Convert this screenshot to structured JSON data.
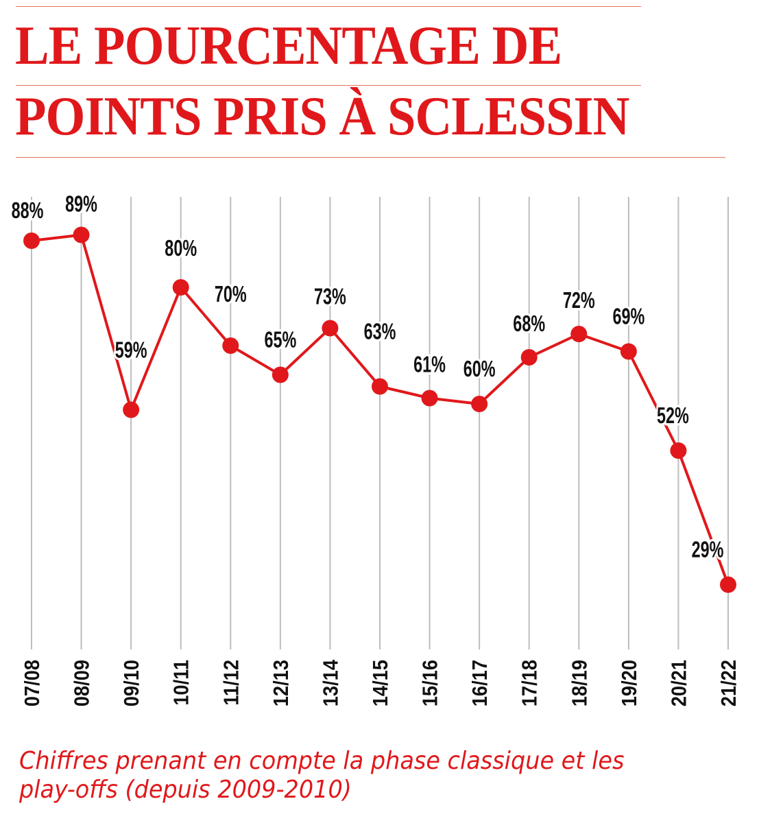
{
  "header": {
    "title_line1": "LE POURCENTAGE DE",
    "title_line2": "POINTS PRIS À SCLESSIN"
  },
  "footnote": {
    "line1": "Chiffres prenant en compte la phase classique et les",
    "line2": "play-offs (depuis 2009-2010)"
  },
  "colors": {
    "accent": "#e0181b",
    "gridline": "#bdbdbd",
    "rule": "#e8735a",
    "text": "#111111"
  },
  "chart_data": {
    "type": "line",
    "title": "LE POURCENTAGE DE POINTS PRIS À SCLESSIN",
    "xlabel": "",
    "ylabel": "",
    "grid": true,
    "categories": [
      "07/08",
      "08/09",
      "09/10",
      "10/11",
      "11/12",
      "12/13",
      "13/14",
      "14/15",
      "15/16",
      "16/17",
      "17/18",
      "18/19",
      "19/20",
      "20/21",
      "21/22"
    ],
    "values": [
      88,
      89,
      59,
      80,
      70,
      65,
      73,
      63,
      61,
      60,
      68,
      72,
      69,
      52,
      29
    ],
    "labels": [
      "88%",
      "89%",
      "59%",
      "80%",
      "70%",
      "65%",
      "73%",
      "63%",
      "61%",
      "60%",
      "68%",
      "72%",
      "69%",
      "52%",
      "29%"
    ],
    "unit": "%"
  }
}
